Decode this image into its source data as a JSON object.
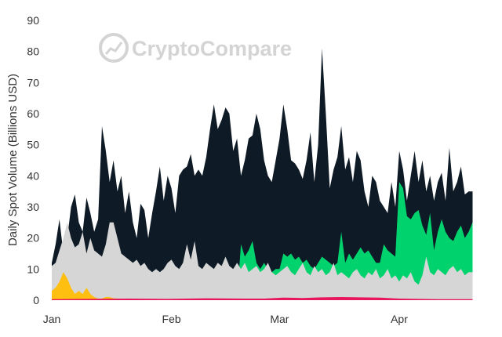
{
  "chart_data": {
    "type": "area",
    "title": "",
    "xlabel": "",
    "ylabel": "Daily Spot Volume (Billions USD)",
    "ylim": [
      0,
      90
    ],
    "yticks": [
      0,
      10,
      20,
      30,
      40,
      50,
      60,
      70,
      80,
      90
    ],
    "x_ticks": [
      {
        "label": "Jan",
        "day": 0
      },
      {
        "label": "Feb",
        "day": 31
      },
      {
        "label": "Mar",
        "day": 59
      },
      {
        "label": "Apr",
        "day": 90
      }
    ],
    "x_range": [
      0,
      115
    ],
    "grid": false,
    "stacking": "overlaid",
    "watermark": "CryptoCompare",
    "series": [
      {
        "name": "",
        "color": "#0e1b26",
        "points": [
          [
            0,
            12
          ],
          [
            1,
            18
          ],
          [
            2,
            26
          ],
          [
            3,
            15
          ],
          [
            4,
            20
          ],
          [
            5,
            30
          ],
          [
            6,
            34
          ],
          [
            7,
            25
          ],
          [
            8,
            22
          ],
          [
            9,
            33
          ],
          [
            10,
            28
          ],
          [
            11,
            22
          ],
          [
            12,
            26
          ],
          [
            13,
            56
          ],
          [
            14,
            48
          ],
          [
            15,
            38
          ],
          [
            16,
            45
          ],
          [
            17,
            35
          ],
          [
            18,
            40
          ],
          [
            19,
            28
          ],
          [
            20,
            35
          ],
          [
            21,
            25
          ],
          [
            22,
            20
          ],
          [
            23,
            31
          ],
          [
            24,
            29
          ],
          [
            25,
            20
          ],
          [
            26,
            28
          ],
          [
            27,
            35
          ],
          [
            28,
            43
          ],
          [
            29,
            32
          ],
          [
            30,
            40
          ],
          [
            31,
            36
          ],
          [
            32,
            28
          ],
          [
            33,
            40
          ],
          [
            34,
            42
          ],
          [
            35,
            43
          ],
          [
            36,
            47
          ],
          [
            37,
            40
          ],
          [
            38,
            42
          ],
          [
            39,
            40
          ],
          [
            40,
            46
          ],
          [
            41,
            55
          ],
          [
            42,
            63
          ],
          [
            43,
            55
          ],
          [
            44,
            58
          ],
          [
            45,
            62
          ],
          [
            46,
            60
          ],
          [
            47,
            48
          ],
          [
            48,
            52
          ],
          [
            49,
            40
          ],
          [
            50,
            45
          ],
          [
            51,
            52
          ],
          [
            52,
            53
          ],
          [
            53,
            60
          ],
          [
            54,
            55
          ],
          [
            55,
            45
          ],
          [
            56,
            40
          ],
          [
            57,
            38
          ],
          [
            58,
            45
          ],
          [
            59,
            52
          ],
          [
            60,
            63
          ],
          [
            61,
            55
          ],
          [
            62,
            45
          ],
          [
            63,
            44
          ],
          [
            64,
            42
          ],
          [
            65,
            39
          ],
          [
            66,
            45
          ],
          [
            67,
            54
          ],
          [
            68,
            38
          ],
          [
            69,
            50
          ],
          [
            70,
            81
          ],
          [
            71,
            60
          ],
          [
            72,
            36
          ],
          [
            73,
            42
          ],
          [
            74,
            46
          ],
          [
            75,
            56
          ],
          [
            76,
            42
          ],
          [
            77,
            46
          ],
          [
            78,
            38
          ],
          [
            79,
            48
          ],
          [
            80,
            45
          ],
          [
            81,
            35
          ],
          [
            82,
            30
          ],
          [
            83,
            40
          ],
          [
            84,
            38
          ],
          [
            85,
            32
          ],
          [
            86,
            30
          ],
          [
            87,
            28
          ],
          [
            88,
            38
          ],
          [
            89,
            30
          ],
          [
            90,
            48
          ],
          [
            91,
            42
          ],
          [
            92,
            32
          ],
          [
            93,
            40
          ],
          [
            94,
            48
          ],
          [
            95,
            38
          ],
          [
            96,
            45
          ],
          [
            97,
            35
          ],
          [
            98,
            40
          ],
          [
            99,
            32
          ],
          [
            100,
            38
          ],
          [
            101,
            41
          ],
          [
            102,
            32
          ],
          [
            103,
            49
          ],
          [
            104,
            35
          ],
          [
            105,
            38
          ],
          [
            106,
            43
          ],
          [
            107,
            34
          ],
          [
            108,
            35
          ],
          [
            109,
            35
          ]
        ]
      },
      {
        "name": "",
        "color": "#00d36e",
        "points": [
          [
            0,
            0
          ],
          [
            48,
            0
          ],
          [
            49,
            18
          ],
          [
            50,
            14
          ],
          [
            51,
            16
          ],
          [
            52,
            19
          ],
          [
            53,
            12
          ],
          [
            54,
            10
          ],
          [
            55,
            12
          ],
          [
            56,
            10
          ],
          [
            57,
            9
          ],
          [
            58,
            10
          ],
          [
            59,
            10
          ],
          [
            60,
            15
          ],
          [
            61,
            14
          ],
          [
            62,
            15
          ],
          [
            63,
            13
          ],
          [
            64,
            14
          ],
          [
            65,
            12
          ],
          [
            66,
            13
          ],
          [
            67,
            11
          ],
          [
            68,
            10
          ],
          [
            69,
            12
          ],
          [
            70,
            14
          ],
          [
            71,
            13
          ],
          [
            72,
            12
          ],
          [
            73,
            11
          ],
          [
            74,
            12
          ],
          [
            75,
            22
          ],
          [
            76,
            12
          ],
          [
            77,
            15
          ],
          [
            78,
            13
          ],
          [
            79,
            15
          ],
          [
            80,
            17
          ],
          [
            81,
            15
          ],
          [
            82,
            16
          ],
          [
            83,
            14
          ],
          [
            84,
            12
          ],
          [
            85,
            12
          ],
          [
            86,
            18
          ],
          [
            87,
            16
          ],
          [
            88,
            15
          ],
          [
            89,
            14
          ],
          [
            90,
            38
          ],
          [
            91,
            36
          ],
          [
            92,
            27
          ],
          [
            93,
            26
          ],
          [
            94,
            28
          ],
          [
            95,
            29
          ],
          [
            96,
            24
          ],
          [
            97,
            21
          ],
          [
            98,
            28
          ],
          [
            99,
            16
          ],
          [
            100,
            22
          ],
          [
            101,
            26
          ],
          [
            102,
            22
          ],
          [
            103,
            20
          ],
          [
            104,
            19
          ],
          [
            105,
            22
          ],
          [
            106,
            24
          ],
          [
            107,
            20
          ],
          [
            108,
            22
          ],
          [
            109,
            25
          ]
        ]
      },
      {
        "name": "",
        "color": "#d6d6d6",
        "points": [
          [
            0,
            11
          ],
          [
            1,
            12
          ],
          [
            2,
            16
          ],
          [
            3,
            20
          ],
          [
            4,
            25
          ],
          [
            5,
            20
          ],
          [
            6,
            17
          ],
          [
            7,
            18
          ],
          [
            8,
            22
          ],
          [
            9,
            15
          ],
          [
            10,
            20
          ],
          [
            11,
            16
          ],
          [
            12,
            15
          ],
          [
            13,
            14
          ],
          [
            14,
            18
          ],
          [
            15,
            25
          ],
          [
            16,
            25
          ],
          [
            17,
            20
          ],
          [
            18,
            15
          ],
          [
            19,
            14
          ],
          [
            20,
            13
          ],
          [
            21,
            12
          ],
          [
            22,
            13
          ],
          [
            23,
            11
          ],
          [
            24,
            12
          ],
          [
            25,
            10
          ],
          [
            26,
            9
          ],
          [
            27,
            10
          ],
          [
            28,
            9
          ],
          [
            29,
            10
          ],
          [
            30,
            12
          ],
          [
            31,
            13
          ],
          [
            32,
            11
          ],
          [
            33,
            10
          ],
          [
            34,
            12
          ],
          [
            35,
            18
          ],
          [
            36,
            13
          ],
          [
            37,
            19
          ],
          [
            38,
            11
          ],
          [
            39,
            10
          ],
          [
            40,
            12
          ],
          [
            41,
            11
          ],
          [
            42,
            10
          ],
          [
            43,
            12
          ],
          [
            44,
            11
          ],
          [
            45,
            14
          ],
          [
            46,
            11
          ],
          [
            47,
            10
          ],
          [
            48,
            12
          ],
          [
            49,
            10
          ],
          [
            50,
            12
          ],
          [
            51,
            9
          ],
          [
            52,
            10
          ],
          [
            53,
            11
          ],
          [
            54,
            9
          ],
          [
            55,
            10
          ],
          [
            56,
            12
          ],
          [
            57,
            9
          ],
          [
            58,
            8
          ],
          [
            59,
            9
          ],
          [
            60,
            10
          ],
          [
            61,
            11
          ],
          [
            62,
            9
          ],
          [
            63,
            8
          ],
          [
            64,
            10
          ],
          [
            65,
            12
          ],
          [
            66,
            9
          ],
          [
            67,
            8
          ],
          [
            68,
            11
          ],
          [
            69,
            9
          ],
          [
            70,
            10
          ],
          [
            71,
            8
          ],
          [
            72,
            9
          ],
          [
            73,
            12
          ],
          [
            74,
            8
          ],
          [
            75,
            9
          ],
          [
            76,
            8
          ],
          [
            77,
            7
          ],
          [
            78,
            9
          ],
          [
            79,
            10
          ],
          [
            80,
            8
          ],
          [
            81,
            7
          ],
          [
            82,
            9
          ],
          [
            83,
            8
          ],
          [
            84,
            10
          ],
          [
            85,
            7
          ],
          [
            86,
            8
          ],
          [
            87,
            10
          ],
          [
            88,
            7
          ],
          [
            89,
            8
          ],
          [
            90,
            6
          ],
          [
            91,
            8
          ],
          [
            92,
            7
          ],
          [
            93,
            9
          ],
          [
            94,
            6
          ],
          [
            95,
            5
          ],
          [
            96,
            8
          ],
          [
            97,
            14
          ],
          [
            98,
            9
          ],
          [
            99,
            8
          ],
          [
            100,
            10
          ],
          [
            101,
            9
          ],
          [
            102,
            8
          ],
          [
            103,
            10
          ],
          [
            104,
            11
          ],
          [
            105,
            9
          ],
          [
            106,
            10
          ],
          [
            107,
            8
          ],
          [
            108,
            9
          ],
          [
            109,
            9
          ]
        ]
      },
      {
        "name": "",
        "color": "#ffbf10",
        "points": [
          [
            0,
            3
          ],
          [
            1,
            4
          ],
          [
            2,
            6
          ],
          [
            3,
            9
          ],
          [
            4,
            7
          ],
          [
            5,
            4
          ],
          [
            6,
            2
          ],
          [
            7,
            3
          ],
          [
            8,
            2
          ],
          [
            9,
            4
          ],
          [
            10,
            2
          ],
          [
            11,
            1
          ],
          [
            12,
            0.5
          ],
          [
            13,
            0.5
          ],
          [
            14,
            1
          ],
          [
            15,
            1
          ],
          [
            16,
            0.6
          ],
          [
            17,
            0.5
          ],
          [
            18,
            0.3
          ],
          [
            19,
            0.2
          ],
          [
            20,
            0.2
          ],
          [
            86,
            0.2
          ],
          [
            87,
            0.5
          ],
          [
            88,
            0.6
          ],
          [
            89,
            0.5
          ],
          [
            90,
            0.3
          ],
          [
            91,
            0.2
          ],
          [
            109,
            0.2
          ]
        ]
      },
      {
        "name": "",
        "color": "#e8175d",
        "points": [
          [
            0,
            0.3
          ],
          [
            10,
            0.4
          ],
          [
            20,
            0.5
          ],
          [
            30,
            0.4
          ],
          [
            40,
            0.6
          ],
          [
            50,
            0.5
          ],
          [
            55,
            0.5
          ],
          [
            60,
            0.8
          ],
          [
            65,
            0.7
          ],
          [
            70,
            0.9
          ],
          [
            75,
            1.0
          ],
          [
            80,
            0.9
          ],
          [
            85,
            0.8
          ],
          [
            90,
            0.5
          ],
          [
            95,
            0.4
          ],
          [
            100,
            0.3
          ],
          [
            109,
            0.3
          ]
        ]
      }
    ]
  }
}
